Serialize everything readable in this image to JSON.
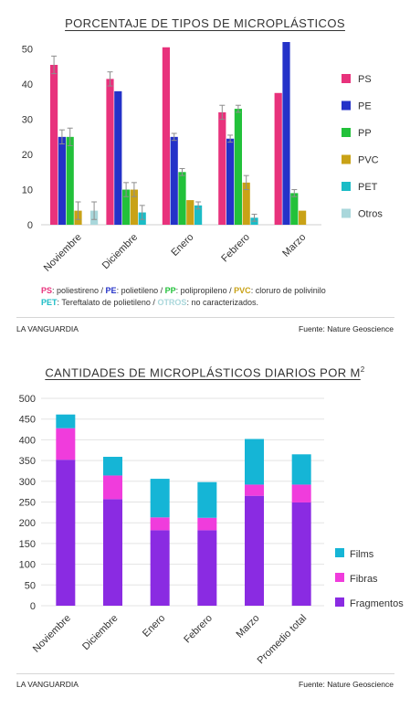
{
  "chart_data": [
    {
      "type": "bar",
      "title": "PORCENTAJE DE TIPOS DE MICROPLÁSTICOS",
      "categories": [
        "Noviembre",
        "Diciembre",
        "Enero",
        "Febrero",
        "Marzo"
      ],
      "ylim": [
        0,
        52
      ],
      "yticks": [
        0,
        10,
        20,
        30,
        40,
        50
      ],
      "grid": false,
      "error_bars": true,
      "legend_position": "right",
      "series": [
        {
          "name": "PS",
          "color": "#e8327c",
          "values": [
            45.5,
            41.5,
            50.5,
            32,
            37.5
          ],
          "errors": [
            2.5,
            2,
            0,
            2,
            0
          ]
        },
        {
          "name": "PE",
          "color": "#2432c8",
          "values": [
            25,
            38,
            25,
            24.5,
            52
          ],
          "errors": [
            2,
            0,
            1,
            1,
            0
          ]
        },
        {
          "name": "PP",
          "color": "#22c13a",
          "values": [
            25,
            10,
            15,
            33,
            9
          ],
          "errors": [
            2.5,
            2,
            1,
            1,
            1
          ]
        },
        {
          "name": "PVC",
          "color": "#c9a216",
          "values": [
            4,
            10,
            7,
            12,
            4
          ],
          "errors": [
            2.5,
            2,
            0,
            2,
            0
          ]
        },
        {
          "name": "PET",
          "color": "#1bbcc6",
          "values": [
            0,
            3.5,
            5.5,
            2,
            0
          ],
          "errors": [
            0,
            2,
            1,
            1,
            0
          ]
        },
        {
          "name": "Otros",
          "color": "#a9d7db",
          "values": [
            4,
            0,
            0,
            0,
            0
          ],
          "errors": [
            2.5,
            0,
            0,
            0,
            0
          ]
        }
      ]
    },
    {
      "type": "bar",
      "stacked": true,
      "title": "CANTIDADES DE MICROPLÁSTICOS DIARIOS POR M",
      "title_superscript": "2",
      "categories": [
        "Noviembre",
        "Diciembre",
        "Enero",
        "Febrero",
        "Marzo",
        "Promedio total"
      ],
      "ylim": [
        0,
        500
      ],
      "yticks": [
        0,
        50,
        100,
        150,
        200,
        250,
        300,
        350,
        400,
        450,
        500
      ],
      "grid": true,
      "legend_position": "right",
      "series": [
        {
          "name": "Fragmentos",
          "color": "#8a2be2",
          "values": [
            352,
            257,
            182,
            182,
            265,
            249
          ]
        },
        {
          "name": "Fibras",
          "color": "#f03cdc",
          "values": [
            76,
            57,
            31,
            30,
            27,
            43
          ]
        },
        {
          "name": "Films",
          "color": "#15b5d6",
          "values": [
            33,
            45,
            93,
            86,
            110,
            73
          ]
        }
      ]
    }
  ],
  "notes": {
    "line1": [
      {
        "text": "PS",
        "color": "#e8327c",
        "bold": true
      },
      {
        "text": ": poliestireno / ",
        "color": "#333333",
        "bold": false
      },
      {
        "text": "PE",
        "color": "#2432c8",
        "bold": true
      },
      {
        "text": ": polietileno / ",
        "color": "#333333",
        "bold": false
      },
      {
        "text": "PP",
        "color": "#22c13a",
        "bold": true
      },
      {
        "text": ": polipropileno / ",
        "color": "#333333",
        "bold": false
      },
      {
        "text": "PVC",
        "color": "#c9a216",
        "bold": true
      },
      {
        "text": ": cloruro de polivinilo",
        "color": "#333333",
        "bold": false
      }
    ],
    "line2": [
      {
        "text": "PET",
        "color": "#1bbcc6",
        "bold": true
      },
      {
        "text": ": Tereftalato de polietileno / ",
        "color": "#333333",
        "bold": false
      },
      {
        "text": "OTROS",
        "color": "#a9d7db",
        "bold": true
      },
      {
        "text": ": no caracterizados.",
        "color": "#333333",
        "bold": false
      }
    ]
  },
  "footer": {
    "source_name": "LA VANGUARDIA",
    "source_credit": "Fuente: Nature Geoscience"
  }
}
